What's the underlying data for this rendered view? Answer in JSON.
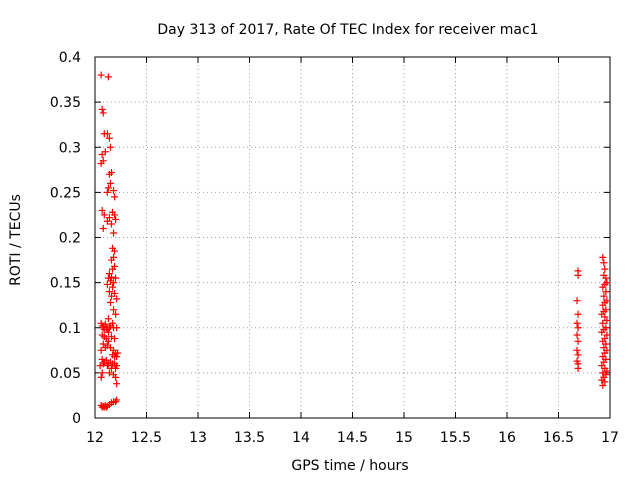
{
  "chart_data": {
    "type": "scatter",
    "title": "Day 313 of 2017, Rate Of TEC Index for receiver mac1",
    "xlabel": "GPS time / hours",
    "ylabel": "ROTI / TECUs",
    "xlim": [
      12,
      17
    ],
    "ylim": [
      0,
      0.4
    ],
    "xticks": [
      "12",
      "12.5",
      "13",
      "13.5",
      "14",
      "14.5",
      "15",
      "15.5",
      "16",
      "16.5",
      "17"
    ],
    "yticks": [
      "0",
      "0.05",
      "0.1",
      "0.15",
      "0.2",
      "0.25",
      "0.3",
      "0.35",
      "0.4"
    ],
    "grid": true,
    "marker": "+",
    "color": "#ff0000",
    "series": [
      {
        "points": [
          [
            12.06,
            0.38
          ],
          [
            12.13,
            0.378
          ],
          [
            12.07,
            0.342
          ],
          [
            12.08,
            0.338
          ],
          [
            12.09,
            0.315
          ],
          [
            12.12,
            0.315
          ],
          [
            12.14,
            0.31
          ],
          [
            12.15,
            0.3
          ],
          [
            12.07,
            0.292
          ],
          [
            12.08,
            0.285
          ],
          [
            12.1,
            0.295
          ],
          [
            12.06,
            0.282
          ],
          [
            12.14,
            0.27
          ],
          [
            12.16,
            0.272
          ],
          [
            12.15,
            0.26
          ],
          [
            12.13,
            0.255
          ],
          [
            12.12,
            0.25
          ],
          [
            12.18,
            0.252
          ],
          [
            12.19,
            0.245
          ],
          [
            12.07,
            0.23
          ],
          [
            12.09,
            0.225
          ],
          [
            12.08,
            0.21
          ],
          [
            12.17,
            0.228
          ],
          [
            12.19,
            0.225
          ],
          [
            12.14,
            0.222
          ],
          [
            12.12,
            0.218
          ],
          [
            12.16,
            0.215
          ],
          [
            12.2,
            0.22
          ],
          [
            12.18,
            0.205
          ],
          [
            12.17,
            0.188
          ],
          [
            12.19,
            0.185
          ],
          [
            12.18,
            0.178
          ],
          [
            12.16,
            0.175
          ],
          [
            12.19,
            0.168
          ],
          [
            12.17,
            0.165
          ],
          [
            12.14,
            0.16
          ],
          [
            12.16,
            0.156
          ],
          [
            12.13,
            0.155
          ],
          [
            12.15,
            0.152
          ],
          [
            12.18,
            0.15
          ],
          [
            12.2,
            0.155
          ],
          [
            12.12,
            0.148
          ],
          [
            12.17,
            0.145
          ],
          [
            12.14,
            0.14
          ],
          [
            12.19,
            0.138
          ],
          [
            12.16,
            0.135
          ],
          [
            12.21,
            0.132
          ],
          [
            12.15,
            0.128
          ],
          [
            12.18,
            0.12
          ],
          [
            12.2,
            0.115
          ],
          [
            12.13,
            0.11
          ],
          [
            12.17,
            0.105
          ],
          [
            12.06,
            0.105
          ],
          [
            12.07,
            0.102
          ],
          [
            12.08,
            0.1
          ],
          [
            12.09,
            0.098
          ],
          [
            12.1,
            0.104
          ],
          [
            12.11,
            0.1
          ],
          [
            12.12,
            0.098
          ],
          [
            12.13,
            0.095
          ],
          [
            12.14,
            0.1
          ],
          [
            12.15,
            0.102
          ],
          [
            12.18,
            0.1
          ],
          [
            12.21,
            0.1
          ],
          [
            12.07,
            0.092
          ],
          [
            12.09,
            0.09
          ],
          [
            12.11,
            0.088
          ],
          [
            12.13,
            0.085
          ],
          [
            12.16,
            0.09
          ],
          [
            12.19,
            0.088
          ],
          [
            12.08,
            0.082
          ],
          [
            12.1,
            0.078
          ],
          [
            12.12,
            0.08
          ],
          [
            12.15,
            0.078
          ],
          [
            12.06,
            0.075
          ],
          [
            12.18,
            0.075
          ],
          [
            12.2,
            0.072
          ],
          [
            12.22,
            0.072
          ],
          [
            12.17,
            0.07
          ],
          [
            12.19,
            0.068
          ],
          [
            12.21,
            0.068
          ],
          [
            12.07,
            0.065
          ],
          [
            12.09,
            0.062
          ],
          [
            12.11,
            0.064
          ],
          [
            12.13,
            0.06
          ],
          [
            12.15,
            0.062
          ],
          [
            12.17,
            0.06
          ],
          [
            12.19,
            0.06
          ],
          [
            12.21,
            0.058
          ],
          [
            12.05,
            0.058
          ],
          [
            12.08,
            0.06
          ],
          [
            12.12,
            0.058
          ],
          [
            12.16,
            0.055
          ],
          [
            12.2,
            0.055
          ],
          [
            12.07,
            0.05
          ],
          [
            12.14,
            0.05
          ],
          [
            12.18,
            0.048
          ],
          [
            12.06,
            0.045
          ],
          [
            12.2,
            0.045
          ],
          [
            12.21,
            0.038
          ],
          [
            12.06,
            0.014
          ],
          [
            12.07,
            0.012
          ],
          [
            12.08,
            0.013
          ],
          [
            12.09,
            0.012
          ],
          [
            12.1,
            0.014
          ],
          [
            12.11,
            0.012
          ],
          [
            12.12,
            0.013
          ],
          [
            12.14,
            0.015
          ],
          [
            12.16,
            0.017
          ],
          [
            12.18,
            0.018
          ],
          [
            12.2,
            0.018
          ],
          [
            12.21,
            0.02
          ],
          [
            16.69,
            0.163
          ],
          [
            16.69,
            0.158
          ],
          [
            16.68,
            0.13
          ],
          [
            16.69,
            0.115
          ],
          [
            16.68,
            0.105
          ],
          [
            16.69,
            0.1
          ],
          [
            16.68,
            0.092
          ],
          [
            16.69,
            0.085
          ],
          [
            16.68,
            0.075
          ],
          [
            16.69,
            0.07
          ],
          [
            16.68,
            0.063
          ],
          [
            16.69,
            0.06
          ],
          [
            16.69,
            0.055
          ],
          [
            16.93,
            0.178
          ],
          [
            16.94,
            0.172
          ],
          [
            16.95,
            0.165
          ],
          [
            16.94,
            0.158
          ],
          [
            16.96,
            0.155
          ],
          [
            16.97,
            0.15
          ],
          [
            16.95,
            0.148
          ],
          [
            16.93,
            0.145
          ],
          [
            16.96,
            0.14
          ],
          [
            16.94,
            0.135
          ],
          [
            16.97,
            0.13
          ],
          [
            16.95,
            0.128
          ],
          [
            16.93,
            0.125
          ],
          [
            16.96,
            0.12
          ],
          [
            16.94,
            0.118
          ],
          [
            16.92,
            0.115
          ],
          [
            16.95,
            0.112
          ],
          [
            16.97,
            0.108
          ],
          [
            16.93,
            0.105
          ],
          [
            16.96,
            0.1
          ],
          [
            16.94,
            0.098
          ],
          [
            16.92,
            0.095
          ],
          [
            16.97,
            0.092
          ],
          [
            16.95,
            0.088
          ],
          [
            16.93,
            0.085
          ],
          [
            16.96,
            0.082
          ],
          [
            16.94,
            0.078
          ],
          [
            16.97,
            0.075
          ],
          [
            16.95,
            0.072
          ],
          [
            16.93,
            0.068
          ],
          [
            16.96,
            0.065
          ],
          [
            16.94,
            0.062
          ],
          [
            16.92,
            0.058
          ],
          [
            16.95,
            0.055
          ],
          [
            16.97,
            0.052
          ],
          [
            16.93,
            0.05
          ],
          [
            16.96,
            0.048
          ],
          [
            16.94,
            0.045
          ],
          [
            16.92,
            0.042
          ],
          [
            16.95,
            0.04
          ],
          [
            16.93,
            0.036
          ]
        ]
      }
    ]
  }
}
